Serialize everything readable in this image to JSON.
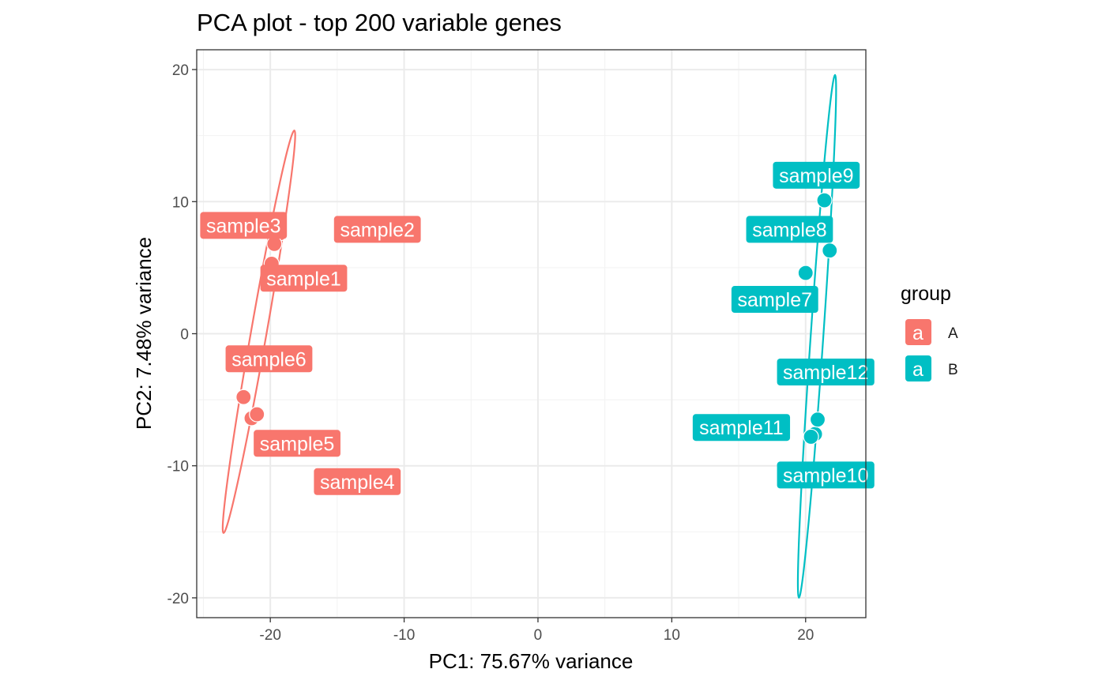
{
  "chart_data": {
    "type": "scatter",
    "title": "PCA plot - top 200 variable genes",
    "xlabel": "PC1: 75.67% variance",
    "ylabel": "PC2: 7.48% variance",
    "xlim": [
      -25.5,
      24.5
    ],
    "ylim": [
      -21.5,
      21.5
    ],
    "xticks": [
      -20,
      -10,
      0,
      10,
      20
    ],
    "xtick_labels": [
      "-20",
      "-10",
      "0",
      "10",
      "20"
    ],
    "yticks": [
      -20,
      -10,
      0,
      10,
      20
    ],
    "ytick_labels": [
      "-20",
      "-10",
      "0",
      "10",
      "20"
    ],
    "grid": true,
    "legend": {
      "title": "group",
      "position": "right",
      "key_glyph": "a",
      "entries": [
        {
          "label": "A",
          "color": "#F8766D"
        },
        {
          "label": "B",
          "color": "#00BFC4"
        }
      ]
    },
    "series": [
      {
        "name": "A",
        "color": "#F8766D",
        "points": [
          {
            "label": "sample1",
            "x": -19.9,
            "y": 5.3
          },
          {
            "label": "sample2",
            "x": -19.3,
            "y": 7.6
          },
          {
            "label": "sample3",
            "x": -19.7,
            "y": 6.8
          },
          {
            "label": "sample4",
            "x": -21.4,
            "y": -6.4
          },
          {
            "label": "sample5",
            "x": -21.0,
            "y": -6.1
          },
          {
            "label": "sample6",
            "x": -22.0,
            "y": -4.8
          }
        ],
        "ellipse": {
          "center": [
            -20.85,
            0.15
          ],
          "x_extent": [
            -23.5,
            -18.2
          ],
          "y_extent": [
            -15.1,
            15.4
          ]
        }
      },
      {
        "name": "B",
        "color": "#00BFC4",
        "points": [
          {
            "label": "sample7",
            "x": 20.0,
            "y": 4.6
          },
          {
            "label": "sample8",
            "x": 21.8,
            "y": 6.3
          },
          {
            "label": "sample9",
            "x": 21.4,
            "y": 10.1
          },
          {
            "label": "sample10",
            "x": 20.7,
            "y": -7.6
          },
          {
            "label": "sample11",
            "x": 20.4,
            "y": -7.8
          },
          {
            "label": "sample12",
            "x": 20.9,
            "y": -6.5
          }
        ],
        "ellipse": {
          "center": [
            20.85,
            -0.2
          ],
          "x_extent": [
            19.5,
            22.2
          ],
          "y_extent": [
            -20.0,
            19.6
          ]
        }
      }
    ]
  }
}
